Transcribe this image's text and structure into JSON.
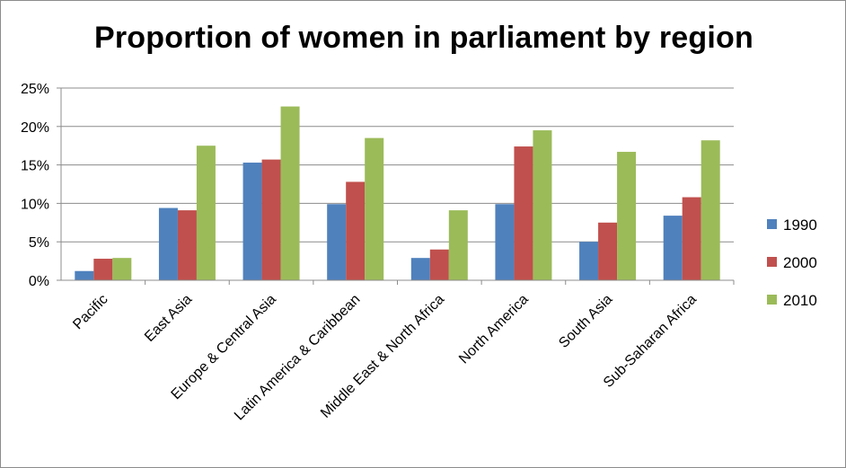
{
  "chart_data": {
    "type": "bar",
    "title": "Proportion of women in parliament by region",
    "xlabel": "",
    "ylabel": "",
    "categories": [
      "Pacific",
      "East Asia",
      "Europe & Central Asia",
      "Latin America & Caribbean",
      "Middle East & North Africa",
      "North America",
      "South Asia",
      "Sub-Saharan Africa"
    ],
    "series": [
      {
        "name": "1990",
        "color": "#4f81bd",
        "values": [
          1.2,
          9.4,
          15.3,
          9.9,
          2.9,
          9.9,
          5.0,
          8.4
        ]
      },
      {
        "name": "2000",
        "color": "#c0504d",
        "values": [
          2.8,
          9.1,
          15.7,
          12.8,
          4.0,
          17.4,
          7.5,
          10.8
        ]
      },
      {
        "name": "2010",
        "color": "#9bbb59",
        "values": [
          2.9,
          17.5,
          22.6,
          18.5,
          9.1,
          19.5,
          16.7,
          18.2
        ]
      }
    ],
    "ylim": [
      0,
      25
    ],
    "yticks": [
      "0%",
      "5%",
      "10%",
      "15%",
      "20%",
      "25%"
    ],
    "ytick_values": [
      0,
      5,
      10,
      15,
      20,
      25
    ],
    "grid": true,
    "legend_position": "right"
  }
}
